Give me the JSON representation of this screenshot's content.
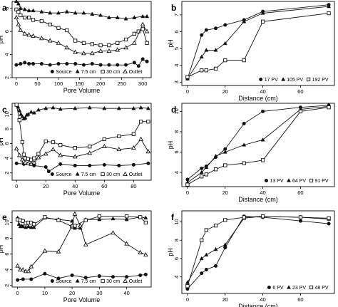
{
  "chart_data": [
    {
      "panel": "a",
      "type": "line",
      "xlabel": "Pore Volume",
      "ylabel": "pH",
      "xlim": [
        -10,
        320
      ],
      "ylim": [
        2,
        8.6
      ],
      "xticks": [
        0,
        50,
        100,
        150,
        200,
        250,
        300
      ],
      "yticks": [
        2,
        4,
        6,
        8
      ],
      "series": [
        {
          "name": "Source",
          "marker": "circle",
          "x": [
            0,
            10,
            20,
            30,
            40,
            60,
            80,
            100,
            120,
            140,
            160,
            180,
            200,
            220,
            240,
            260,
            280,
            290,
            300,
            310
          ],
          "y": [
            3.1,
            3.2,
            3.3,
            3.2,
            3.2,
            3.2,
            3.1,
            3.2,
            3.2,
            3.2,
            3.1,
            3.2,
            3.1,
            3.1,
            3.1,
            3.1,
            3.3,
            3.0,
            3.6,
            3.4
          ]
        },
        {
          "name": "7.5 cm",
          "marker": "triangle-filled",
          "x": [
            0,
            5,
            10,
            20,
            30,
            40,
            60,
            80,
            100,
            120,
            140,
            160,
            180,
            200,
            220,
            240,
            260,
            280,
            300,
            310
          ],
          "y": [
            8.6,
            8.4,
            8.0,
            7.9,
            7.8,
            7.8,
            7.7,
            7.6,
            7.6,
            7.7,
            7.6,
            7.6,
            7.5,
            7.4,
            7.2,
            7.2,
            7.1,
            7.2,
            7.3,
            7.3
          ]
        },
        {
          "name": "30 cm",
          "marker": "square",
          "x": [
            0,
            5,
            10,
            20,
            30,
            40,
            60,
            80,
            100,
            120,
            140,
            160,
            180,
            200,
            220,
            240,
            260,
            280,
            290,
            300,
            310
          ],
          "y": [
            7.9,
            7.7,
            7.4,
            7.2,
            7.2,
            7.0,
            6.9,
            6.6,
            6.3,
            6.1,
            5.2,
            5.0,
            4.9,
            4.8,
            4.8,
            5.0,
            5.3,
            5.8,
            6.0,
            6.2,
            5.0
          ]
        },
        {
          "name": "Outlet",
          "marker": "triangle-open",
          "x": [
            0,
            5,
            10,
            20,
            30,
            40,
            60,
            80,
            100,
            120,
            140,
            160,
            180,
            200,
            220,
            240,
            260,
            280,
            300,
            310
          ],
          "y": [
            7.2,
            6.6,
            6.1,
            5.8,
            5.7,
            5.6,
            5.4,
            5.2,
            5.0,
            4.6,
            4.2,
            4.1,
            4.1,
            4.3,
            4.3,
            4.4,
            4.6,
            5.0,
            6.6,
            6.0
          ]
        }
      ]
    },
    {
      "panel": "b",
      "type": "line",
      "xlabel": "Distance (cm)",
      "ylabel": "pH",
      "xlim": [
        -3,
        78
      ],
      "ylim": [
        2.8,
        7.8
      ],
      "xticks": [
        0,
        20,
        40,
        60
      ],
      "yticks": [
        3,
        4,
        5,
        6,
        7
      ],
      "series": [
        {
          "name": "17 PV",
          "marker": "circle",
          "x": [
            0,
            7.5,
            10,
            15,
            20,
            30,
            40,
            75
          ],
          "y": [
            3.2,
            5.8,
            6.1,
            6.2,
            6.4,
            6.7,
            7.2,
            7.6
          ]
        },
        {
          "name": "105 PV",
          "marker": "triangle-filled",
          "x": [
            0,
            7.5,
            10,
            15,
            20,
            30,
            40,
            75
          ],
          "y": [
            3.2,
            4.5,
            4.9,
            4.9,
            5.3,
            6.6,
            7.1,
            7.5
          ]
        },
        {
          "name": "192 PV",
          "marker": "square",
          "x": [
            0,
            7.5,
            10,
            15,
            20,
            30,
            40,
            75
          ],
          "y": [
            3.3,
            3.7,
            3.7,
            3.8,
            4.3,
            4.3,
            6.6,
            7.1
          ]
        }
      ]
    },
    {
      "panel": "c",
      "type": "line",
      "xlabel": "Pore Volume",
      "ylabel": "pH",
      "xlim": [
        -3,
        92
      ],
      "ylim": [
        1,
        11.5
      ],
      "xticks": [
        0,
        20,
        40,
        60,
        80
      ],
      "yticks": [
        2,
        4,
        6,
        8,
        10
      ],
      "series": [
        {
          "name": "Source",
          "marker": "circle",
          "x": [
            0,
            5,
            10,
            12,
            20,
            22,
            30,
            40,
            50,
            60,
            70,
            80,
            90
          ],
          "y": [
            3.3,
            3.2,
            3.2,
            3.0,
            2.8,
            2.2,
            3.2,
            3.0,
            3.0,
            3.1,
            3.0,
            3.1,
            3.3
          ]
        },
        {
          "name": "7.5 cm",
          "marker": "triangle-filled",
          "x": [
            0,
            1,
            2,
            3,
            4,
            5,
            6,
            7,
            8,
            10,
            12,
            15,
            20,
            25,
            30,
            40,
            50,
            60,
            70,
            80,
            85,
            90
          ],
          "y": [
            11.3,
            11.0,
            10.5,
            10.0,
            9.7,
            9.4,
            9.5,
            9.9,
            10.0,
            10.3,
            10.2,
            10.6,
            10.8,
            10.9,
            10.7,
            10.8,
            10.9,
            10.8,
            10.8,
            10.8,
            10.9,
            10.8
          ]
        },
        {
          "name": "30 cm",
          "marker": "square",
          "x": [
            0,
            2,
            4,
            5,
            6,
            8,
            10,
            12,
            15,
            20,
            25,
            30,
            40,
            50,
            60,
            70,
            80,
            85,
            90
          ],
          "y": [
            11.3,
            9.2,
            6.2,
            4.5,
            4.0,
            3.9,
            3.8,
            4.0,
            4.6,
            6.3,
            6.2,
            5.8,
            5.4,
            5.6,
            6.6,
            7.0,
            7.3,
            9.0,
            9.0
          ]
        },
        {
          "name": "Outlet",
          "marker": "triangle-open",
          "x": [
            0,
            2,
            4,
            5,
            6,
            8,
            10,
            12,
            15,
            20,
            25,
            30,
            40,
            50,
            60,
            70,
            80,
            85,
            90
          ],
          "y": [
            5.3,
            4.4,
            3.8,
            3.6,
            3.4,
            3.3,
            3.2,
            3.4,
            4.1,
            4.6,
            5.2,
            4.4,
            4.2,
            4.7,
            5.6,
            5.2,
            5.4,
            6.6,
            4.9
          ]
        }
      ]
    },
    {
      "panel": "d",
      "type": "line",
      "xlabel": "Distance (cm)",
      "ylabel": "pH",
      "xlim": [
        -3,
        78
      ],
      "ylim": [
        2.6,
        10.8
      ],
      "xticks": [
        0,
        20,
        40,
        60
      ],
      "yticks": [
        4,
        6,
        8,
        10
      ],
      "series": [
        {
          "name": "13 PV",
          "marker": "circle",
          "x": [
            0,
            7.5,
            10,
            15,
            20,
            30,
            40,
            60,
            75
          ],
          "y": [
            3.3,
            4.4,
            4.6,
            5.5,
            6.3,
            8.8,
            10.0,
            10.4,
            10.6
          ]
        },
        {
          "name": "64 PV",
          "marker": "triangle-filled",
          "x": [
            0,
            7.5,
            10,
            15,
            20,
            30,
            40,
            60,
            75
          ],
          "y": [
            3.0,
            4.0,
            4.5,
            5.6,
            6.0,
            6.7,
            7.2,
            10.2,
            10.5
          ]
        },
        {
          "name": "91 PV",
          "marker": "square",
          "x": [
            0,
            7.5,
            10,
            15,
            20,
            30,
            40,
            60,
            75
          ],
          "y": [
            2.8,
            3.6,
            3.8,
            4.3,
            4.7,
            4.9,
            5.2,
            10.0,
            10.4
          ]
        }
      ]
    },
    {
      "panel": "e",
      "type": "line",
      "xlabel": "Pore Volume",
      "ylabel": "pH",
      "xlim": [
        -2,
        49
      ],
      "ylim": [
        1.8,
        11.5
      ],
      "xticks": [
        0,
        10,
        20,
        30,
        40
      ],
      "yticks": [
        2,
        4,
        6,
        8,
        10
      ],
      "series": [
        {
          "name": "Source",
          "marker": "circle",
          "x": [
            0,
            2,
            5,
            10,
            15,
            20,
            25,
            30,
            35,
            40,
            45,
            47
          ],
          "y": [
            2.7,
            2.8,
            2.8,
            3.5,
            2.9,
            3.3,
            3.0,
            3.2,
            3.1,
            3.1,
            3.3,
            3.4
          ]
        },
        {
          "name": "7.5 cm",
          "marker": "triangle-filled",
          "x": [
            0,
            0.5,
            1,
            1.5,
            2,
            3,
            4,
            5,
            6,
            10,
            15,
            20,
            21,
            23,
            25,
            30,
            35,
            40,
            45,
            47
          ],
          "y": [
            10.6,
            9.8,
            9.5,
            9.6,
            9.5,
            9.4,
            9.5,
            9.4,
            9.4,
            10.6,
            10.4,
            10.2,
            9.3,
            9.3,
            10.4,
            10.4,
            10.5,
            10.4,
            10.7,
            10.6
          ]
        },
        {
          "name": "30 cm",
          "marker": "square",
          "x": [
            0,
            1,
            2,
            3,
            4,
            5,
            6,
            10,
            15,
            20,
            21,
            25,
            30,
            40,
            45,
            47
          ],
          "y": [
            10.4,
            10.3,
            10.2,
            9.9,
            10.0,
            10.0,
            9.8,
            10.7,
            10.3,
            9.5,
            9.6,
            10.3,
            10.8,
            10.8,
            10.7,
            10.0
          ]
        },
        {
          "name": "Outlet",
          "marker": "triangle-open",
          "x": [
            0,
            1,
            2,
            3,
            4,
            5,
            10,
            15,
            20,
            21,
            23,
            25,
            35,
            40,
            45,
            47
          ],
          "y": [
            4.5,
            4.0,
            4.0,
            3.8,
            3.8,
            4.4,
            6.4,
            6.3,
            9.6,
            11.1,
            9.6,
            7.2,
            8.7,
            7.3,
            6.2,
            5.9
          ]
        }
      ]
    },
    {
      "panel": "f",
      "type": "line",
      "xlabel": "Distance (cm)",
      "ylabel": "pH",
      "xlim": [
        -3,
        78
      ],
      "ylim": [
        2.2,
        11.2
      ],
      "xticks": [
        0,
        20,
        40,
        60
      ],
      "yticks": [
        4,
        6,
        8,
        10
      ],
      "series": [
        {
          "name": "6 PV",
          "marker": "circle",
          "x": [
            0,
            7.5,
            10,
            15,
            20,
            30,
            40,
            60,
            75
          ],
          "y": [
            2.7,
            4.4,
            4.8,
            5.2,
            7.2,
            10.6,
            10.5,
            10.1,
            9.8
          ]
        },
        {
          "name": "23 PV",
          "marker": "triangle-filled",
          "x": [
            0,
            7.5,
            10,
            15,
            20,
            30,
            40,
            60,
            75
          ],
          "y": [
            3.4,
            6.0,
            6.4,
            7.0,
            7.5,
            10.4,
            10.6,
            10.5,
            10.3
          ]
        },
        {
          "name": "48 PV",
          "marker": "square",
          "x": [
            0,
            7.5,
            10,
            15,
            20,
            30,
            40,
            60,
            75
          ],
          "y": [
            3.0,
            8.0,
            9.1,
            9.6,
            10.2,
            10.5,
            10.6,
            10.5,
            10.4
          ]
        }
      ]
    }
  ]
}
